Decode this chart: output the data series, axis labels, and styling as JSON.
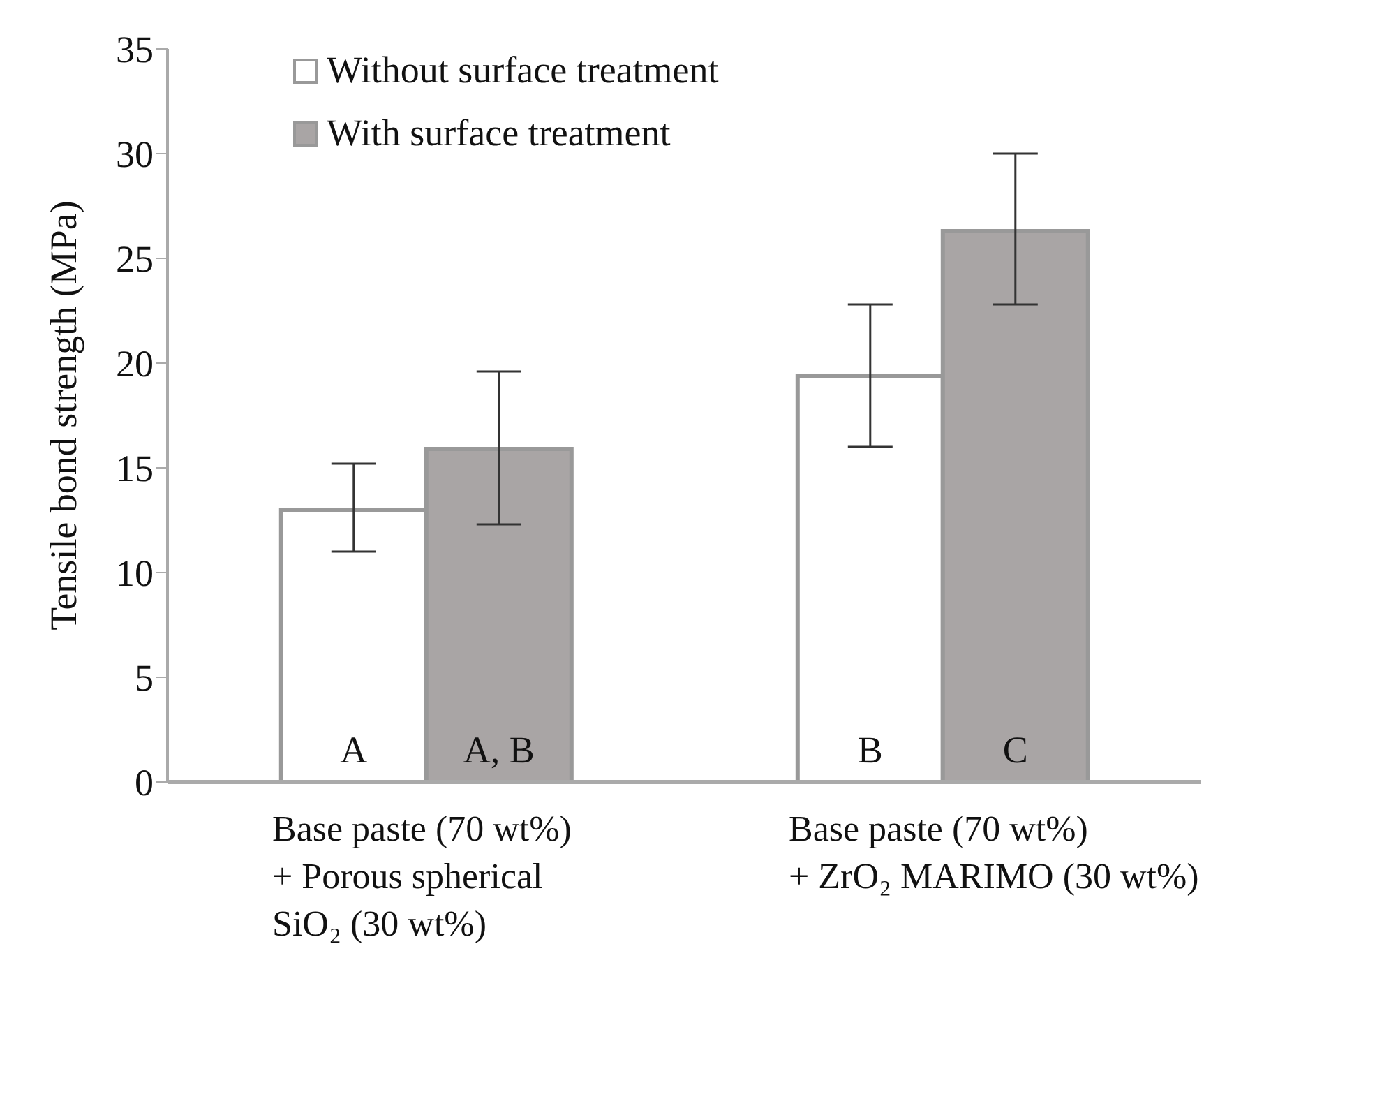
{
  "chart_data": {
    "type": "bar",
    "ylabel": "Tensile bond strength (MPa)",
    "categories": [
      "Base paste (70 wt%)\n+ Porous spherical\nSiO₂ (30 wt%)",
      "Base paste (70 wt%)\n+ ZrO₂ MARIMO  (30 wt%)"
    ],
    "series": [
      {
        "name": "Without surface treatment",
        "color": "#ffffff",
        "values": [
          13.0,
          19.4
        ],
        "errors": [
          [
            11.0,
            15.2
          ],
          [
            16.0,
            22.8
          ]
        ],
        "value_labels": [
          "A",
          "B"
        ]
      },
      {
        "name": "With surface treatment",
        "color": "#a9a5a5",
        "values": [
          15.9,
          26.3
        ],
        "errors": [
          [
            12.3,
            19.6
          ],
          [
            22.8,
            30.0
          ]
        ],
        "value_labels": [
          "A, B",
          "C"
        ]
      }
    ],
    "ylim": [
      0,
      35
    ],
    "yticks": [
      0,
      5,
      10,
      15,
      20,
      25,
      30,
      35
    ],
    "grid": false,
    "legend": "top left"
  }
}
